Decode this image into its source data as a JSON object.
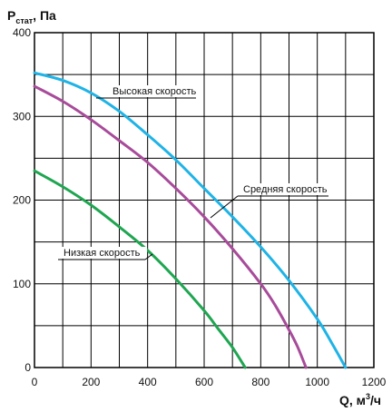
{
  "chart_data": {
    "type": "line",
    "ylabel": {
      "main": "P",
      "sub": "стат",
      "rest": ", Па"
    },
    "xlabel": {
      "main": "Q, м",
      "sup": "3",
      "rest": "/ч"
    },
    "xlim": [
      0,
      1200
    ],
    "ylim": [
      0,
      400
    ],
    "x_ticks": [
      "0",
      "200",
      "400",
      "600",
      "800",
      "1000",
      "1200"
    ],
    "y_ticks": [
      "0",
      "100",
      "200",
      "300",
      "400"
    ],
    "grid": true,
    "series": [
      {
        "name": "Высокая скорость",
        "color": "#1fb3e6",
        "x": [
          0,
          100,
          200,
          300,
          400,
          500,
          600,
          700,
          800,
          900,
          1000,
          1050,
          1100
        ],
        "y": [
          352,
          343,
          328,
          306,
          278,
          248,
          214,
          180,
          144,
          104,
          58,
          30,
          0
        ]
      },
      {
        "name": "Средняя скорость",
        "color": "#a84b9a",
        "x": [
          0,
          100,
          200,
          300,
          400,
          500,
          600,
          700,
          800,
          850,
          900,
          930,
          960
        ],
        "y": [
          336,
          318,
          296,
          271,
          245,
          214,
          180,
          142,
          100,
          75,
          45,
          25,
          0
        ]
      },
      {
        "name": "Низкая скорость",
        "color": "#1fa651",
        "x": [
          0,
          100,
          200,
          300,
          400,
          500,
          600,
          650,
          700,
          745
        ],
        "y": [
          235,
          216,
          194,
          168,
          140,
          106,
          68,
          46,
          24,
          0
        ]
      }
    ]
  }
}
